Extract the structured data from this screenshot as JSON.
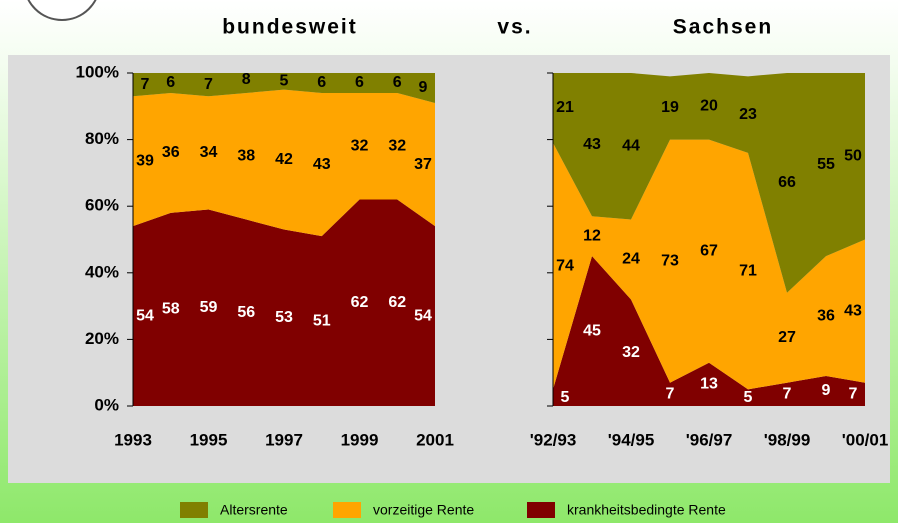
{
  "header": {
    "connector": "vs."
  },
  "chart_data": [
    {
      "type": "stacked_area",
      "title": "bundesweit",
      "categories": [
        "1993",
        null,
        "1995",
        null,
        "1997",
        null,
        "1999",
        null,
        "2001"
      ],
      "series": [
        {
          "name": "krankheitsbedingte Rente",
          "color": "#800000",
          "values": [
            54,
            58,
            59,
            56,
            53,
            51,
            62,
            62,
            54
          ]
        },
        {
          "name": "vorzeitige Rente",
          "color": "#ffa500",
          "values": [
            39,
            36,
            34,
            38,
            42,
            43,
            32,
            32,
            37
          ]
        },
        {
          "name": "Altersrente",
          "color": "#808000",
          "values": [
            7,
            6,
            7,
            8,
            5,
            6,
            6,
            6,
            9
          ]
        }
      ],
      "ylim": [
        0,
        100
      ],
      "yticks": [
        {
          "value": 0,
          "label": "0%"
        },
        {
          "value": 20,
          "label": "20%"
        },
        {
          "value": 40,
          "label": "40%"
        },
        {
          "value": 60,
          "label": "60%"
        },
        {
          "value": 80,
          "label": "80%"
        },
        {
          "value": 100,
          "label": "100%"
        }
      ]
    },
    {
      "type": "stacked_area",
      "title": "Sachsen",
      "categories": [
        "'92/93",
        null,
        "'94/95",
        null,
        "'96/97",
        null,
        "'98/99",
        null,
        "'00/01"
      ],
      "series": [
        {
          "name": "krankheitsbedingte Rente",
          "color": "#800000",
          "values": [
            5,
            45,
            32,
            7,
            13,
            5,
            7,
            9,
            7
          ]
        },
        {
          "name": "vorzeitige Rente",
          "color": "#ffa500",
          "values": [
            74,
            12,
            24,
            73,
            67,
            71,
            27,
            36,
            43
          ]
        },
        {
          "name": "Altersrente",
          "color": "#808000",
          "values": [
            21,
            43,
            44,
            19,
            20,
            23,
            66,
            55,
            50
          ]
        }
      ],
      "ylim": [
        0,
        100
      ],
      "yticks": [
        0,
        20,
        40,
        60,
        80,
        100
      ]
    }
  ]
}
